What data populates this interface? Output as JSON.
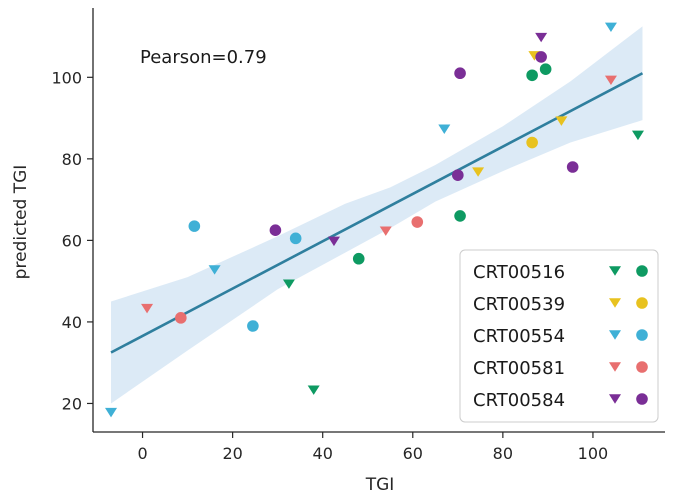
{
  "chart_data": {
    "type": "scatter",
    "title": "",
    "xlabel": "TGI",
    "ylabel": "predicted TGI",
    "xlim": [
      -11,
      116
    ],
    "ylim": [
      13,
      117
    ],
    "xticks": [
      0,
      20,
      40,
      60,
      80,
      100
    ],
    "yticks": [
      20,
      40,
      60,
      80,
      100
    ],
    "annotation": "Pearson=0.79",
    "grid": false,
    "legend_position": "lower-right",
    "marker_legend": {
      "triangle": "triangle-down",
      "circle": "circle"
    },
    "regression": {
      "color": "#2f7f9e",
      "band_color": "#d6e6f4",
      "line": [
        [
          -7,
          32.5
        ],
        [
          111,
          101
        ]
      ],
      "band_upper": [
        [
          -7,
          45
        ],
        [
          10,
          51
        ],
        [
          30,
          61
        ],
        [
          45,
          69
        ],
        [
          55,
          73
        ],
        [
          65,
          78.5
        ],
        [
          80,
          88
        ],
        [
          95,
          99
        ],
        [
          111,
          112.5
        ]
      ],
      "band_lower": [
        [
          -7,
          20
        ],
        [
          10,
          33
        ],
        [
          30,
          48
        ],
        [
          45,
          57
        ],
        [
          55,
          63
        ],
        [
          65,
          69.5
        ],
        [
          80,
          77
        ],
        [
          95,
          84
        ],
        [
          111,
          89.5
        ]
      ]
    },
    "series": [
      {
        "name": "CRT00516",
        "color": "#0e9a62",
        "triangles": [
          [
            32.5,
            49.5
          ],
          [
            38,
            23.5
          ],
          [
            110,
            86
          ]
        ],
        "circles": [
          [
            48,
            55.5
          ],
          [
            70.5,
            66
          ],
          [
            86.5,
            100.5
          ],
          [
            89.5,
            102
          ]
        ]
      },
      {
        "name": "CRT00539",
        "color": "#e8c21f",
        "triangles": [
          [
            74.5,
            77
          ],
          [
            87,
            105.5
          ],
          [
            93,
            89.5
          ]
        ],
        "circles": [
          [
            86.5,
            84
          ]
        ]
      },
      {
        "name": "CRT00554",
        "color": "#3fb0d6",
        "triangles": [
          [
            -7,
            18
          ],
          [
            16,
            53
          ],
          [
            67,
            87.5
          ],
          [
            104,
            112.5
          ]
        ],
        "circles": [
          [
            11.5,
            63.5
          ],
          [
            24.5,
            39
          ],
          [
            34,
            60.5
          ]
        ]
      },
      {
        "name": "CRT00581",
        "color": "#e86f6f",
        "triangles": [
          [
            1,
            43.5
          ],
          [
            54,
            62.5
          ],
          [
            104,
            99.5
          ]
        ],
        "circles": [
          [
            8.5,
            41
          ],
          [
            61,
            64.5
          ]
        ]
      },
      {
        "name": "CRT00584",
        "color": "#7a2e96",
        "triangles": [
          [
            42.5,
            60
          ],
          [
            88.5,
            110
          ]
        ],
        "circles": [
          [
            29.5,
            62.5
          ],
          [
            70,
            76
          ],
          [
            70.5,
            101
          ],
          [
            88.5,
            105
          ],
          [
            95.5,
            78
          ]
        ]
      }
    ]
  }
}
